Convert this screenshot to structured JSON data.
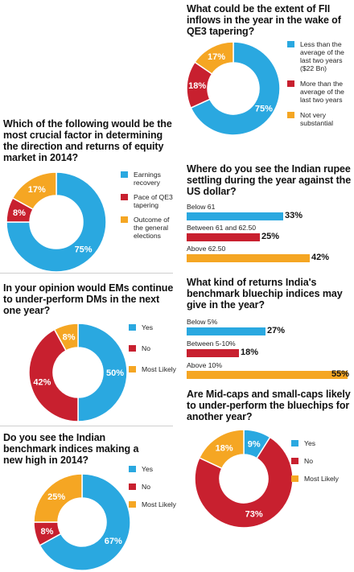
{
  "colors": {
    "blue": "#2aa8e0",
    "red": "#c8202f",
    "orange": "#f5a623"
  },
  "chart_data": [
    {
      "id": "fii",
      "type": "pie",
      "title": "What could be the extent of FII inflows in the year in the wake of QE3 tapering?",
      "slices": [
        {
          "label": "Less than the average of the last two years ($22 Bn)",
          "value": 75,
          "color": "blue",
          "display": "75%"
        },
        {
          "label": "More than the average of the last two years",
          "value": 18,
          "color": "red",
          "display": "18%"
        },
        {
          "label": "Not very substantial",
          "value": 17,
          "color": "orange",
          "display": "17%"
        }
      ]
    },
    {
      "id": "factor",
      "type": "pie",
      "title": "Which of the following would be the most crucial factor in determining the direction and returns of equity market in 2014?",
      "slices": [
        {
          "label": "Earnings recovery",
          "value": 75,
          "color": "blue",
          "display": "75%"
        },
        {
          "label": "Pace of QE3 tapering",
          "value": 8,
          "color": "red",
          "display": "8%"
        },
        {
          "label": "Outcome of the general elections",
          "value": 17,
          "color": "orange",
          "display": "17%"
        }
      ]
    },
    {
      "id": "ems",
      "type": "pie",
      "title": "In your opinion would EMs continue to under-perform DMs in the next one year?",
      "slices": [
        {
          "label": "Yes",
          "value": 50,
          "color": "blue",
          "display": "50%"
        },
        {
          "label": "No",
          "value": 42,
          "color": "red",
          "display": "42%"
        },
        {
          "label": "Most Likely",
          "value": 8,
          "color": "orange",
          "display": "8%"
        }
      ]
    },
    {
      "id": "newhigh",
      "type": "pie",
      "title": "Do you see the Indian benchmark indices making a new high in 2014?",
      "slices": [
        {
          "label": "Yes",
          "value": 67,
          "color": "blue",
          "display": "67%"
        },
        {
          "label": "No",
          "value": 8,
          "color": "red",
          "display": "8%"
        },
        {
          "label": "Most Likely",
          "value": 25,
          "color": "orange",
          "display": "25%"
        }
      ]
    },
    {
      "id": "rupee",
      "type": "bar",
      "title": "Where do you see the Indian rupee settling during the year against the US dollar?",
      "categories": [
        "Below 61",
        "Between 61 and 62.50",
        "Above 62.50"
      ],
      "values": [
        33,
        25,
        42
      ],
      "display": [
        "33%",
        "25%",
        "42%"
      ],
      "colors": [
        "blue",
        "red",
        "orange"
      ]
    },
    {
      "id": "returns",
      "type": "bar",
      "title": "What kind of returns India's benchmark bluechip indices may give in the year?",
      "categories": [
        "Below 5%",
        "Between 5-10%",
        "Above 10%"
      ],
      "values": [
        27,
        18,
        55
      ],
      "display": [
        "27%",
        "18%",
        "55%"
      ],
      "colors": [
        "blue",
        "red",
        "orange"
      ]
    },
    {
      "id": "midcaps",
      "type": "pie",
      "title": "Are Mid-caps and small-caps likely to under-perform the bluechips for another year?",
      "slices": [
        {
          "label": "Yes",
          "value": 9,
          "color": "blue",
          "display": "9%"
        },
        {
          "label": "No",
          "value": 73,
          "color": "red",
          "display": "73%"
        },
        {
          "label": "Most Likely",
          "value": 18,
          "color": "orange",
          "display": "18%"
        }
      ]
    }
  ]
}
